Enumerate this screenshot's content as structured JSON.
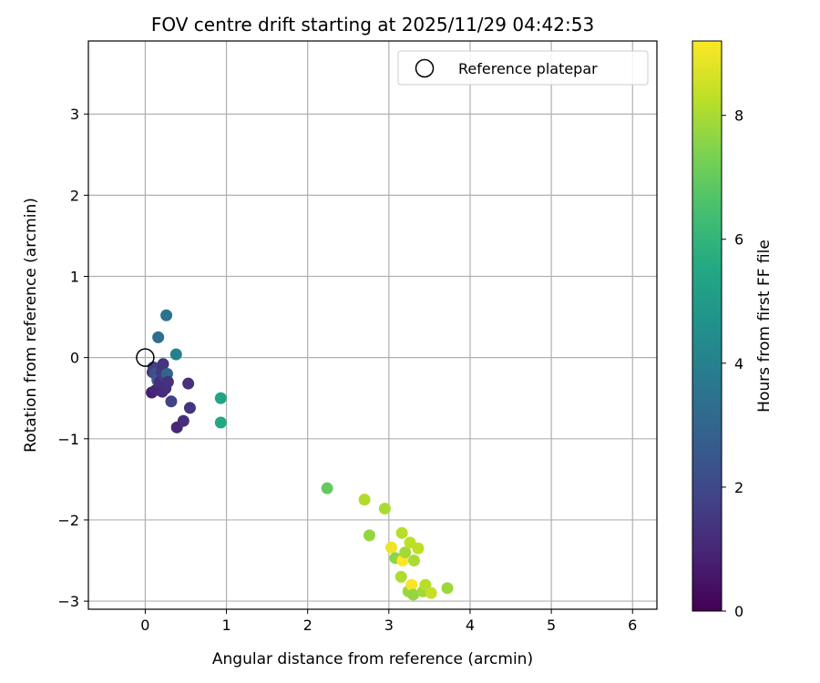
{
  "chart_data": {
    "type": "scatter",
    "title": "FOV centre drift starting at 2025/11/29 04:42:53",
    "xlabel": "Angular distance from reference (arcmin)",
    "ylabel": "Rotation from reference (arcmin)",
    "xlim": [
      -0.7,
      6.3
    ],
    "ylim": [
      -3.1,
      3.9
    ],
    "xticks": [
      0,
      1,
      2,
      3,
      4,
      5,
      6
    ],
    "yticks": [
      -3,
      -2,
      -1,
      0,
      1,
      2,
      3
    ],
    "grid": true,
    "legend": {
      "location": "upper right",
      "entries": [
        "Reference platepar"
      ]
    },
    "reference_point": {
      "x": 0,
      "y": 0,
      "label": "Reference platepar"
    },
    "colorbar": {
      "label": "Hours from first FF file",
      "range": [
        0,
        9.2
      ],
      "ticks": [
        0,
        2,
        4,
        6,
        8
      ],
      "colormap": "viridis"
    },
    "series": [
      {
        "name": "FF files",
        "points": [
          {
            "x": 0.08,
            "y": -0.43,
            "c": 0.8
          },
          {
            "x": 0.09,
            "y": -0.18,
            "c": 1.3
          },
          {
            "x": 0.1,
            "y": -0.12,
            "c": 1.7
          },
          {
            "x": 0.12,
            "y": -0.2,
            "c": 2.3
          },
          {
            "x": 0.13,
            "y": -0.4,
            "c": 1.0
          },
          {
            "x": 0.15,
            "y": -0.28,
            "c": 2.8
          },
          {
            "x": 0.16,
            "y": 0.25,
            "c": 3.3
          },
          {
            "x": 0.18,
            "y": -0.3,
            "c": 1.2
          },
          {
            "x": 0.2,
            "y": -0.18,
            "c": 1.5
          },
          {
            "x": 0.21,
            "y": -0.42,
            "c": 1.1
          },
          {
            "x": 0.22,
            "y": -0.08,
            "c": 1.4
          },
          {
            "x": 0.24,
            "y": -0.25,
            "c": 1.6
          },
          {
            "x": 0.25,
            "y": -0.38,
            "c": 1.2
          },
          {
            "x": 0.26,
            "y": 0.52,
            "c": 3.5
          },
          {
            "x": 0.27,
            "y": -0.2,
            "c": 3.0
          },
          {
            "x": 0.28,
            "y": -0.3,
            "c": 1.3
          },
          {
            "x": 0.32,
            "y": -0.54,
            "c": 1.8
          },
          {
            "x": 0.38,
            "y": 0.04,
            "c": 4.0
          },
          {
            "x": 0.39,
            "y": -0.86,
            "c": 1.0
          },
          {
            "x": 0.47,
            "y": -0.78,
            "c": 1.2
          },
          {
            "x": 0.53,
            "y": -0.32,
            "c": 1.3
          },
          {
            "x": 0.55,
            "y": -0.62,
            "c": 1.4
          },
          {
            "x": 0.93,
            "y": -0.5,
            "c": 5.3
          },
          {
            "x": 0.93,
            "y": -0.8,
            "c": 5.5
          },
          {
            "x": 2.24,
            "y": -1.61,
            "c": 7.0
          },
          {
            "x": 2.7,
            "y": -1.75,
            "c": 8.1
          },
          {
            "x": 2.76,
            "y": -2.19,
            "c": 7.7
          },
          {
            "x": 2.95,
            "y": -1.86,
            "c": 8.0
          },
          {
            "x": 3.03,
            "y": -2.34,
            "c": 9.0
          },
          {
            "x": 3.08,
            "y": -2.47,
            "c": 7.6
          },
          {
            "x": 3.15,
            "y": -2.7,
            "c": 8.1
          },
          {
            "x": 3.16,
            "y": -2.16,
            "c": 8.2
          },
          {
            "x": 3.17,
            "y": -2.5,
            "c": 9.2
          },
          {
            "x": 3.2,
            "y": -2.4,
            "c": 7.9
          },
          {
            "x": 3.24,
            "y": -2.88,
            "c": 7.8
          },
          {
            "x": 3.26,
            "y": -2.28,
            "c": 8.3
          },
          {
            "x": 3.28,
            "y": -2.8,
            "c": 9.1
          },
          {
            "x": 3.3,
            "y": -2.92,
            "c": 7.7
          },
          {
            "x": 3.31,
            "y": -2.5,
            "c": 8.0
          },
          {
            "x": 3.36,
            "y": -2.35,
            "c": 8.3
          },
          {
            "x": 3.42,
            "y": -2.88,
            "c": 7.9
          },
          {
            "x": 3.45,
            "y": -2.8,
            "c": 8.2
          },
          {
            "x": 3.52,
            "y": -2.9,
            "c": 8.4
          },
          {
            "x": 3.72,
            "y": -2.84,
            "c": 7.8
          }
        ]
      }
    ]
  }
}
